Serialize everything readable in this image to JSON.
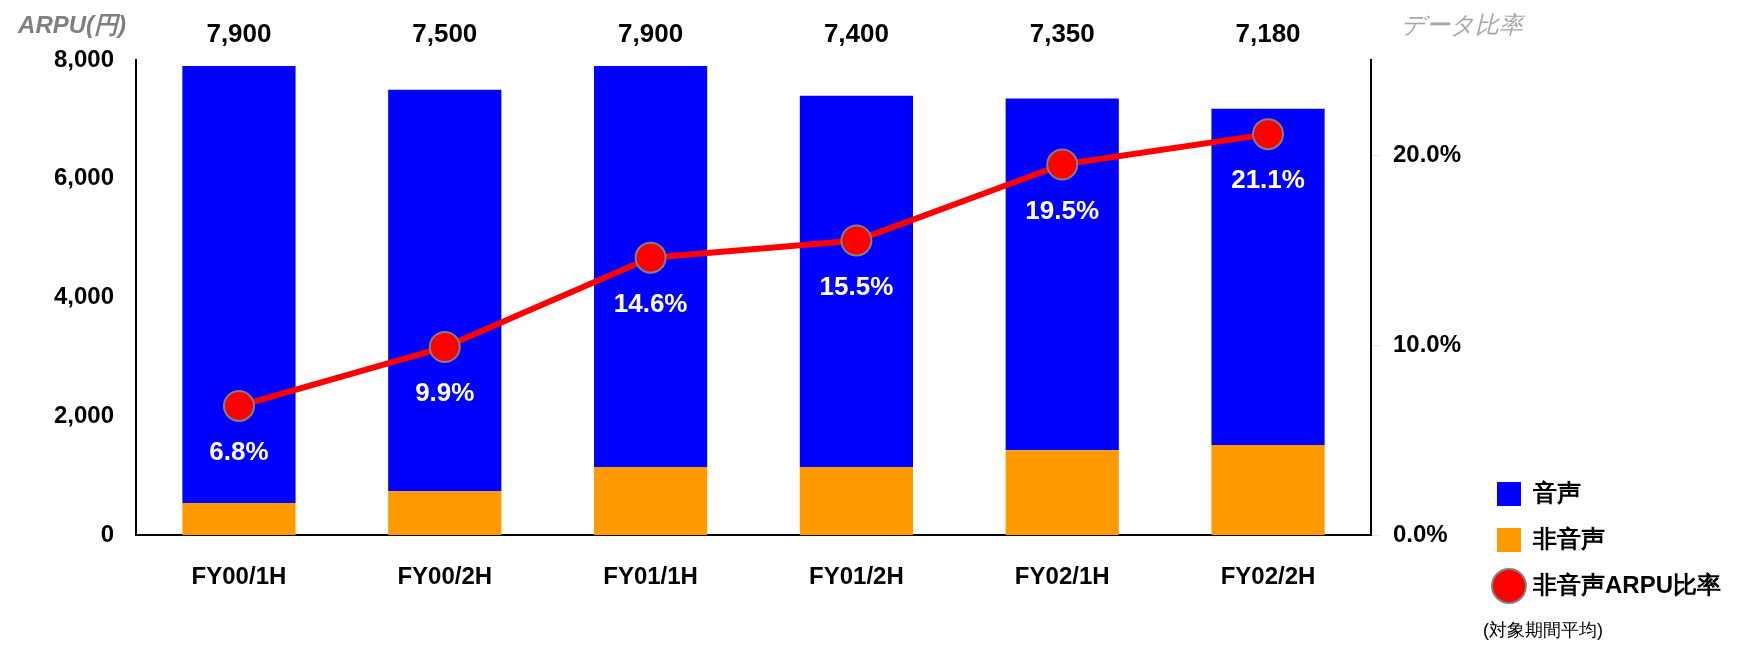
{
  "chart_data": {
    "type": "bar",
    "stacked": true,
    "ylabel": "ARPU(円)",
    "y2label": "データ比率",
    "categories": [
      "FY00/1H",
      "FY00/2H",
      "FY01/1H",
      "FY01/2H",
      "FY02/1H",
      "FY02/2H"
    ],
    "series": [
      {
        "name": "非音声",
        "color": "#ff9900",
        "values": [
          540,
          740,
          1150,
          1150,
          1430,
          1520
        ]
      },
      {
        "name": "音声",
        "color": "#0000ff",
        "values": [
          7360,
          6760,
          6750,
          6250,
          5920,
          5660
        ]
      },
      {
        "name": "非音声ARPU比率",
        "type": "line",
        "axis": "y2",
        "color": "#ff0000",
        "values": [
          6.8,
          9.9,
          14.6,
          15.5,
          19.5,
          21.1
        ],
        "value_labels": [
          "6.8%",
          "9.9%",
          "14.6%",
          "15.5%",
          "19.5%",
          "21.1%"
        ]
      }
    ],
    "totals": [
      "7,900",
      "7,500",
      "7,900",
      "7,400",
      "7,350",
      "7,180"
    ],
    "ylim": [
      0,
      8000
    ],
    "yticks": [
      0,
      {
        "value": 2000,
        "label": "2,000"
      },
      {
        "value": 4000,
        "label": "4,000"
      },
      {
        "value": 6000,
        "label": "6,000"
      },
      {
        "value": 8000,
        "label": "8,000"
      }
    ],
    "y2lim": [
      0,
      25
    ],
    "y2ticks": [
      {
        "value": 0,
        "label": "0.0%"
      },
      {
        "value": 10,
        "label": "10.0%"
      },
      {
        "value": 20,
        "label": "20.0%"
      }
    ],
    "marker": "circle",
    "grid": false,
    "legend": "bottom right",
    "annotations": [
      "(対象期間平均)"
    ]
  }
}
